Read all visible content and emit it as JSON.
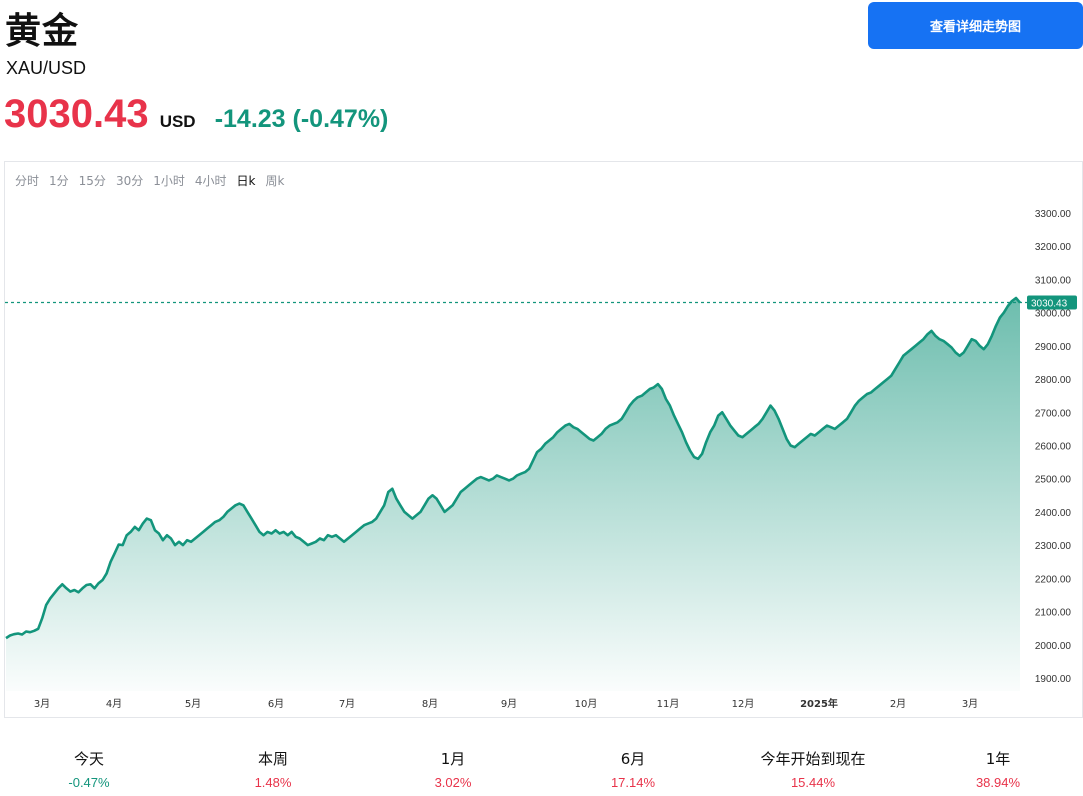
{
  "header": {
    "title": "黄金",
    "subtitle": "XAU/USD",
    "price": "3030.43",
    "currency": "USD",
    "change": "-14.23 (-0.47%)",
    "trend_button": "查看详细走势图"
  },
  "intervals": [
    {
      "label": "分时",
      "active": false
    },
    {
      "label": "1分",
      "active": false
    },
    {
      "label": "15分",
      "active": false
    },
    {
      "label": "30分",
      "active": false
    },
    {
      "label": "1小时",
      "active": false
    },
    {
      "label": "4小时",
      "active": false
    },
    {
      "label": "日k",
      "active": true
    },
    {
      "label": "周k",
      "active": false
    }
  ],
  "chart_data": {
    "type": "area",
    "ylim": [
      1870,
      3345
    ],
    "y_ticks": [
      "1900.00",
      "2000.00",
      "2100.00",
      "2200.00",
      "2300.00",
      "2400.00",
      "2500.00",
      "2600.00",
      "2700.00",
      "2800.00",
      "2900.00",
      "3000.00",
      "3100.00",
      "3200.00",
      "3300.00"
    ],
    "x_ticks": [
      "3月",
      "4月",
      "5月",
      "6月",
      "7月",
      "8月",
      "9月",
      "10月",
      "11月",
      "12月",
      "2025年",
      "2月",
      "3月"
    ],
    "last_price": 3030.43,
    "last_price_label": "3030.43",
    "series": [
      {
        "values": [
          2020,
          2028,
          2032,
          2034,
          2031,
          2040,
          2038,
          2042,
          2048,
          2080,
          2120,
          2140,
          2155,
          2170,
          2182,
          2170,
          2160,
          2165,
          2158,
          2170,
          2180,
          2182,
          2170,
          2185,
          2195,
          2215,
          2250,
          2275,
          2302,
          2300,
          2330,
          2340,
          2355,
          2345,
          2365,
          2380,
          2375,
          2345,
          2335,
          2315,
          2330,
          2320,
          2300,
          2310,
          2300,
          2315,
          2310,
          2320,
          2330,
          2340,
          2350,
          2360,
          2370,
          2375,
          2385,
          2400,
          2410,
          2420,
          2425,
          2420,
          2400,
          2380,
          2360,
          2340,
          2330,
          2340,
          2335,
          2345,
          2335,
          2340,
          2330,
          2340,
          2325,
          2320,
          2310,
          2300,
          2305,
          2310,
          2320,
          2315,
          2330,
          2325,
          2330,
          2320,
          2310,
          2320,
          2330,
          2340,
          2350,
          2360,
          2365,
          2370,
          2380,
          2400,
          2420,
          2460,
          2470,
          2440,
          2420,
          2400,
          2390,
          2380,
          2390,
          2400,
          2420,
          2440,
          2450,
          2440,
          2420,
          2400,
          2410,
          2420,
          2440,
          2460,
          2470,
          2480,
          2490,
          2500,
          2505,
          2500,
          2495,
          2500,
          2510,
          2505,
          2500,
          2495,
          2500,
          2510,
          2515,
          2520,
          2530,
          2555,
          2580,
          2590,
          2605,
          2615,
          2625,
          2640,
          2650,
          2660,
          2665,
          2655,
          2650,
          2640,
          2630,
          2620,
          2615,
          2625,
          2635,
          2650,
          2660,
          2665,
          2670,
          2680,
          2700,
          2720,
          2735,
          2745,
          2750,
          2760,
          2770,
          2775,
          2785,
          2770,
          2740,
          2720,
          2690,
          2665,
          2640,
          2610,
          2585,
          2565,
          2560,
          2575,
          2610,
          2640,
          2660,
          2690,
          2700,
          2680,
          2660,
          2645,
          2630,
          2625,
          2635,
          2645,
          2655,
          2665,
          2680,
          2700,
          2720,
          2705,
          2680,
          2650,
          2620,
          2600,
          2595,
          2605,
          2615,
          2625,
          2635,
          2630,
          2640,
          2650,
          2660,
          2655,
          2650,
          2660,
          2670,
          2680,
          2700,
          2720,
          2735,
          2745,
          2755,
          2760,
          2770,
          2780,
          2790,
          2800,
          2810,
          2830,
          2850,
          2870,
          2880,
          2890,
          2900,
          2910,
          2920,
          2935,
          2945,
          2930,
          2920,
          2915,
          2905,
          2895,
          2880,
          2870,
          2880,
          2900,
          2920,
          2915,
          2900,
          2890,
          2905,
          2930,
          2960,
          2985,
          3000,
          3020,
          3035,
          3044,
          3030
        ]
      }
    ]
  },
  "stats": [
    {
      "label": "今天",
      "value": "-0.47%",
      "trend": "neg"
    },
    {
      "label": "本周",
      "value": "1.48%",
      "trend": "pos"
    },
    {
      "label": "1月",
      "value": "3.02%",
      "trend": "pos"
    },
    {
      "label": "6月",
      "value": "17.14%",
      "trend": "pos"
    },
    {
      "label": "今年开始到现在",
      "value": "15.44%",
      "trend": "pos"
    },
    {
      "label": "1年",
      "value": "38.94%",
      "trend": "pos"
    }
  ],
  "colors": {
    "price_red": "#e8334a",
    "change_green": "#13957c",
    "line_green": "#13957c",
    "button_blue": "#1672f3"
  }
}
